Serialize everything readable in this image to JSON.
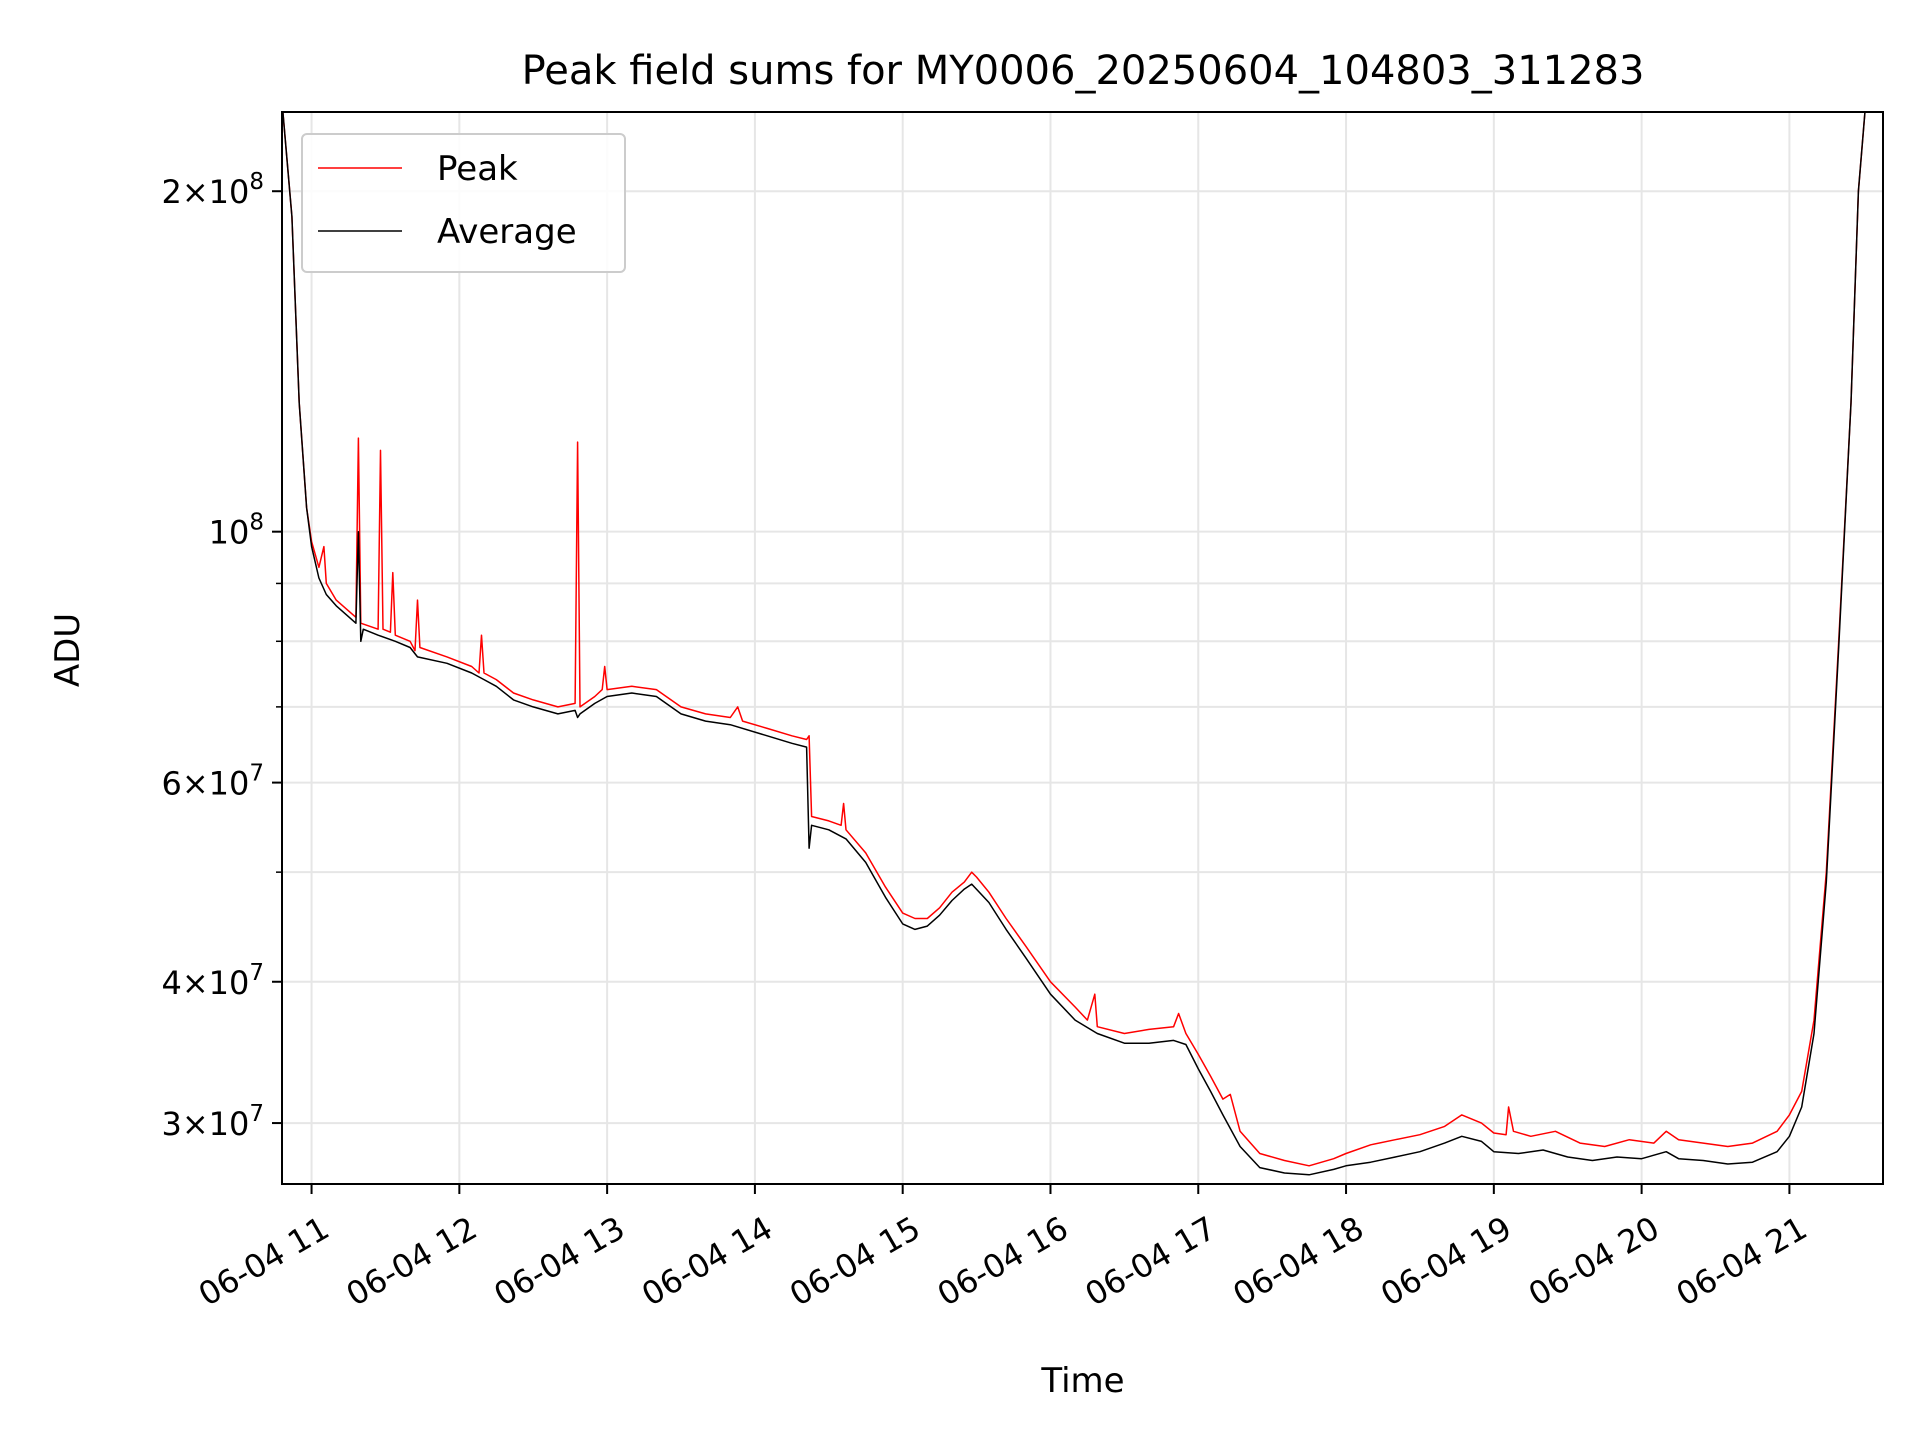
{
  "chart_data": {
    "type": "line",
    "title": "Peak field sums for MY0006_20250604_104803_311283",
    "xlabel": "Time",
    "ylabel": "ADU",
    "y_scale": "log",
    "ylim": [
      26500000,
      235000000
    ],
    "xlim": [
      "2025-06-04T10:48",
      "2025-06-04T21:38"
    ],
    "grid": true,
    "legend_location": "upper left",
    "x_ticks": [
      {
        "t": "2025-06-04T11:00",
        "label": "06-04 11"
      },
      {
        "t": "2025-06-04T12:00",
        "label": "06-04 12"
      },
      {
        "t": "2025-06-04T13:00",
        "label": "06-04 13"
      },
      {
        "t": "2025-06-04T14:00",
        "label": "06-04 14"
      },
      {
        "t": "2025-06-04T15:00",
        "label": "06-04 15"
      },
      {
        "t": "2025-06-04T16:00",
        "label": "06-04 16"
      },
      {
        "t": "2025-06-04T17:00",
        "label": "06-04 17"
      },
      {
        "t": "2025-06-04T18:00",
        "label": "06-04 18"
      },
      {
        "t": "2025-06-04T19:00",
        "label": "06-04 19"
      },
      {
        "t": "2025-06-04T20:00",
        "label": "06-04 20"
      },
      {
        "t": "2025-06-04T21:00",
        "label": "06-04 21"
      }
    ],
    "y_ticks": [
      {
        "value": 30000000,
        "mant": "3",
        "exp": "7"
      },
      {
        "value": 40000000,
        "mant": "4",
        "exp": "7"
      },
      {
        "value": 60000000,
        "mant": "6",
        "exp": "7"
      },
      {
        "value": 100000000,
        "mant": "",
        "exp": "8"
      },
      {
        "value": 200000000,
        "mant": "2",
        "exp": "8"
      }
    ],
    "y_minor_ticks": [
      50000000,
      70000000,
      80000000,
      90000000
    ],
    "series": [
      {
        "name": "Peak",
        "color": "#ff0000",
        "points": [
          [
            "2025-06-04T10:48",
            240000000
          ],
          [
            "2025-06-04T10:52",
            190000000
          ],
          [
            "2025-06-04T10:55",
            130000000
          ],
          [
            "2025-06-04T10:58",
            105000000
          ],
          [
            "2025-06-04T11:00",
            98000000
          ],
          [
            "2025-06-04T11:03",
            93000000
          ],
          [
            "2025-06-04T11:05",
            97000000
          ],
          [
            "2025-06-04T11:06",
            90000000
          ],
          [
            "2025-06-04T11:10",
            87000000
          ],
          [
            "2025-06-04T11:18",
            84000000
          ],
          [
            "2025-06-04T11:19",
            121000000
          ],
          [
            "2025-06-04T11:20",
            83000000
          ],
          [
            "2025-06-04T11:27",
            82000000
          ],
          [
            "2025-06-04T11:28",
            118000000
          ],
          [
            "2025-06-04T11:29",
            82000000
          ],
          [
            "2025-06-04T11:32",
            81500000
          ],
          [
            "2025-06-04T11:33",
            92000000
          ],
          [
            "2025-06-04T11:34",
            81000000
          ],
          [
            "2025-06-04T11:40",
            80000000
          ],
          [
            "2025-06-04T11:42",
            78500000
          ],
          [
            "2025-06-04T11:43",
            87000000
          ],
          [
            "2025-06-04T11:44",
            79000000
          ],
          [
            "2025-06-04T11:55",
            77500000
          ],
          [
            "2025-06-04T12:05",
            76000000
          ],
          [
            "2025-06-04T12:08",
            75000000
          ],
          [
            "2025-06-04T12:09",
            81000000
          ],
          [
            "2025-06-04T12:10",
            75000000
          ],
          [
            "2025-06-04T12:15",
            74000000
          ],
          [
            "2025-06-04T12:22",
            72000000
          ],
          [
            "2025-06-04T12:30",
            71000000
          ],
          [
            "2025-06-04T12:40",
            70000000
          ],
          [
            "2025-06-04T12:47",
            70500000
          ],
          [
            "2025-06-04T12:48",
            120000000
          ],
          [
            "2025-06-04T12:49",
            70000000
          ],
          [
            "2025-06-04T12:55",
            71500000
          ],
          [
            "2025-06-04T12:58",
            72500000
          ],
          [
            "2025-06-04T12:59",
            76000000
          ],
          [
            "2025-06-04T13:00",
            72500000
          ],
          [
            "2025-06-04T13:10",
            73000000
          ],
          [
            "2025-06-04T13:20",
            72500000
          ],
          [
            "2025-06-04T13:30",
            70000000
          ],
          [
            "2025-06-04T13:40",
            69000000
          ],
          [
            "2025-06-04T13:50",
            68500000
          ],
          [
            "2025-06-04T13:53",
            70000000
          ],
          [
            "2025-06-04T13:55",
            68000000
          ],
          [
            "2025-06-04T14:05",
            67000000
          ],
          [
            "2025-06-04T14:15",
            66000000
          ],
          [
            "2025-06-04T14:21",
            65500000
          ],
          [
            "2025-06-04T14:22",
            66000000
          ],
          [
            "2025-06-04T14:23",
            56000000
          ],
          [
            "2025-06-04T14:30",
            55500000
          ],
          [
            "2025-06-04T14:35",
            55000000
          ],
          [
            "2025-06-04T14:36",
            57500000
          ],
          [
            "2025-06-04T14:37",
            54500000
          ],
          [
            "2025-06-04T14:45",
            52000000
          ],
          [
            "2025-06-04T14:53",
            48500000
          ],
          [
            "2025-06-04T15:00",
            46000000
          ],
          [
            "2025-06-04T15:05",
            45500000
          ],
          [
            "2025-06-04T15:10",
            45500000
          ],
          [
            "2025-06-04T15:15",
            46500000
          ],
          [
            "2025-06-04T15:20",
            48000000
          ],
          [
            "2025-06-04T15:25",
            49000000
          ],
          [
            "2025-06-04T15:28",
            50000000
          ],
          [
            "2025-06-04T15:30",
            49500000
          ],
          [
            "2025-06-04T15:35",
            48000000
          ],
          [
            "2025-06-04T15:42",
            45500000
          ],
          [
            "2025-06-04T15:50",
            43000000
          ],
          [
            "2025-06-04T16:00",
            40000000
          ],
          [
            "2025-06-04T16:10",
            38000000
          ],
          [
            "2025-06-04T16:15",
            37000000
          ],
          [
            "2025-06-04T16:18",
            39000000
          ],
          [
            "2025-06-04T16:19",
            36500000
          ],
          [
            "2025-06-04T16:30",
            36000000
          ],
          [
            "2025-06-04T16:40",
            36300000
          ],
          [
            "2025-06-04T16:50",
            36500000
          ],
          [
            "2025-06-04T16:52",
            37500000
          ],
          [
            "2025-06-04T16:55",
            36000000
          ],
          [
            "2025-06-04T17:00",
            34500000
          ],
          [
            "2025-06-04T17:05",
            33000000
          ],
          [
            "2025-06-04T17:10",
            31500000
          ],
          [
            "2025-06-04T17:13",
            31800000
          ],
          [
            "2025-06-04T17:17",
            29500000
          ],
          [
            "2025-06-04T17:25",
            28200000
          ],
          [
            "2025-06-04T17:35",
            27800000
          ],
          [
            "2025-06-04T17:45",
            27500000
          ],
          [
            "2025-06-04T17:55",
            27900000
          ],
          [
            "2025-06-04T18:00",
            28200000
          ],
          [
            "2025-06-04T18:10",
            28700000
          ],
          [
            "2025-06-04T18:20",
            29000000
          ],
          [
            "2025-06-04T18:30",
            29300000
          ],
          [
            "2025-06-04T18:40",
            29800000
          ],
          [
            "2025-06-04T18:47",
            30500000
          ],
          [
            "2025-06-04T18:55",
            30000000
          ],
          [
            "2025-06-04T19:00",
            29400000
          ],
          [
            "2025-06-04T19:05",
            29300000
          ],
          [
            "2025-06-04T19:06",
            31000000
          ],
          [
            "2025-06-04T19:08",
            29500000
          ],
          [
            "2025-06-04T19:15",
            29200000
          ],
          [
            "2025-06-04T19:25",
            29500000
          ],
          [
            "2025-06-04T19:35",
            28800000
          ],
          [
            "2025-06-04T19:45",
            28600000
          ],
          [
            "2025-06-04T19:55",
            29000000
          ],
          [
            "2025-06-04T20:05",
            28800000
          ],
          [
            "2025-06-04T20:10",
            29500000
          ],
          [
            "2025-06-04T20:15",
            29000000
          ],
          [
            "2025-06-04T20:25",
            28800000
          ],
          [
            "2025-06-04T20:35",
            28600000
          ],
          [
            "2025-06-04T20:45",
            28800000
          ],
          [
            "2025-06-04T20:55",
            29500000
          ],
          [
            "2025-06-04T21:00",
            30500000
          ],
          [
            "2025-06-04T21:05",
            32000000
          ],
          [
            "2025-06-04T21:10",
            37000000
          ],
          [
            "2025-06-04T21:15",
            50000000
          ],
          [
            "2025-06-04T21:20",
            80000000
          ],
          [
            "2025-06-04T21:25",
            130000000
          ],
          [
            "2025-06-04T21:28",
            200000000
          ],
          [
            "2025-06-04T21:31",
            240000000
          ]
        ]
      },
      {
        "name": "Average",
        "color": "#000000",
        "points": [
          [
            "2025-06-04T10:48",
            240000000
          ],
          [
            "2025-06-04T10:52",
            190000000
          ],
          [
            "2025-06-04T10:55",
            130000000
          ],
          [
            "2025-06-04T10:58",
            105000000
          ],
          [
            "2025-06-04T11:00",
            97000000
          ],
          [
            "2025-06-04T11:03",
            91000000
          ],
          [
            "2025-06-04T11:06",
            88000000
          ],
          [
            "2025-06-04T11:10",
            86000000
          ],
          [
            "2025-06-04T11:18",
            83000000
          ],
          [
            "2025-06-04T11:19",
            100000000
          ],
          [
            "2025-06-04T11:20",
            80000000
          ],
          [
            "2025-06-04T11:21",
            82000000
          ],
          [
            "2025-06-04T11:27",
            81000000
          ],
          [
            "2025-06-04T11:34",
            80000000
          ],
          [
            "2025-06-04T11:40",
            79000000
          ],
          [
            "2025-06-04T11:43",
            77500000
          ],
          [
            "2025-06-04T11:55",
            76500000
          ],
          [
            "2025-06-04T12:05",
            75000000
          ],
          [
            "2025-06-04T12:10",
            74000000
          ],
          [
            "2025-06-04T12:15",
            73000000
          ],
          [
            "2025-06-04T12:22",
            71000000
          ],
          [
            "2025-06-04T12:30",
            70000000
          ],
          [
            "2025-06-04T12:40",
            69000000
          ],
          [
            "2025-06-04T12:47",
            69500000
          ],
          [
            "2025-06-04T12:48",
            68500000
          ],
          [
            "2025-06-04T12:49",
            69000000
          ],
          [
            "2025-06-04T12:55",
            70500000
          ],
          [
            "2025-06-04T13:00",
            71500000
          ],
          [
            "2025-06-04T13:10",
            72000000
          ],
          [
            "2025-06-04T13:20",
            71500000
          ],
          [
            "2025-06-04T13:30",
            69000000
          ],
          [
            "2025-06-04T13:40",
            68000000
          ],
          [
            "2025-06-04T13:50",
            67500000
          ],
          [
            "2025-06-04T14:05",
            66000000
          ],
          [
            "2025-06-04T14:15",
            65000000
          ],
          [
            "2025-06-04T14:21",
            64500000
          ],
          [
            "2025-06-04T14:22",
            52500000
          ],
          [
            "2025-06-04T14:23",
            55000000
          ],
          [
            "2025-06-04T14:30",
            54500000
          ],
          [
            "2025-06-04T14:37",
            53500000
          ],
          [
            "2025-06-04T14:45",
            51000000
          ],
          [
            "2025-06-04T14:53",
            47500000
          ],
          [
            "2025-06-04T15:00",
            45000000
          ],
          [
            "2025-06-04T15:05",
            44500000
          ],
          [
            "2025-06-04T15:10",
            44800000
          ],
          [
            "2025-06-04T15:15",
            45800000
          ],
          [
            "2025-06-04T15:20",
            47200000
          ],
          [
            "2025-06-04T15:25",
            48300000
          ],
          [
            "2025-06-04T15:28",
            48800000
          ],
          [
            "2025-06-04T15:35",
            47000000
          ],
          [
            "2025-06-04T15:42",
            44500000
          ],
          [
            "2025-06-04T15:50",
            42000000
          ],
          [
            "2025-06-04T16:00",
            39000000
          ],
          [
            "2025-06-04T16:10",
            37000000
          ],
          [
            "2025-06-04T16:19",
            36000000
          ],
          [
            "2025-06-04T16:30",
            35300000
          ],
          [
            "2025-06-04T16:40",
            35300000
          ],
          [
            "2025-06-04T16:50",
            35500000
          ],
          [
            "2025-06-04T16:55",
            35200000
          ],
          [
            "2025-06-04T17:00",
            33500000
          ],
          [
            "2025-06-04T17:05",
            32000000
          ],
          [
            "2025-06-04T17:10",
            30500000
          ],
          [
            "2025-06-04T17:17",
            28600000
          ],
          [
            "2025-06-04T17:25",
            27400000
          ],
          [
            "2025-06-04T17:35",
            27100000
          ],
          [
            "2025-06-04T17:45",
            27000000
          ],
          [
            "2025-06-04T17:55",
            27300000
          ],
          [
            "2025-06-04T18:00",
            27500000
          ],
          [
            "2025-06-04T18:10",
            27700000
          ],
          [
            "2025-06-04T18:20",
            28000000
          ],
          [
            "2025-06-04T18:30",
            28300000
          ],
          [
            "2025-06-04T18:40",
            28800000
          ],
          [
            "2025-06-04T18:47",
            29200000
          ],
          [
            "2025-06-04T18:55",
            28900000
          ],
          [
            "2025-06-04T19:00",
            28300000
          ],
          [
            "2025-06-04T19:10",
            28200000
          ],
          [
            "2025-06-04T19:20",
            28400000
          ],
          [
            "2025-06-04T19:30",
            28000000
          ],
          [
            "2025-06-04T19:40",
            27800000
          ],
          [
            "2025-06-04T19:50",
            28000000
          ],
          [
            "2025-06-04T20:00",
            27900000
          ],
          [
            "2025-06-04T20:10",
            28300000
          ],
          [
            "2025-06-04T20:15",
            27900000
          ],
          [
            "2025-06-04T20:25",
            27800000
          ],
          [
            "2025-06-04T20:35",
            27600000
          ],
          [
            "2025-06-04T20:45",
            27700000
          ],
          [
            "2025-06-04T20:55",
            28300000
          ],
          [
            "2025-06-04T21:00",
            29200000
          ],
          [
            "2025-06-04T21:05",
            31000000
          ],
          [
            "2025-06-04T21:10",
            36000000
          ],
          [
            "2025-06-04T21:15",
            49000000
          ],
          [
            "2025-06-04T21:20",
            79000000
          ],
          [
            "2025-06-04T21:25",
            130000000
          ],
          [
            "2025-06-04T21:28",
            200000000
          ],
          [
            "2025-06-04T21:31",
            240000000
          ]
        ]
      }
    ]
  }
}
